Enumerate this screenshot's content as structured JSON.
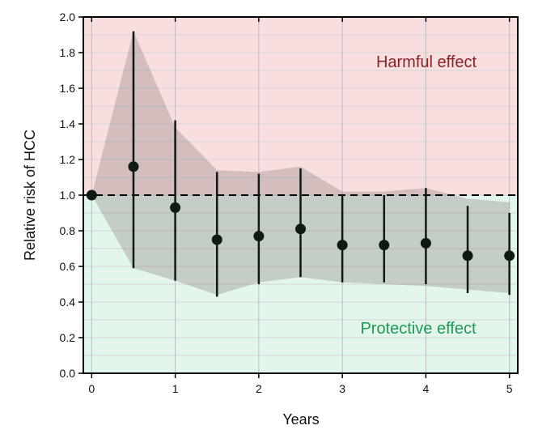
{
  "colors": {
    "harmful_bg": "#f8dede",
    "protective_bg": "#e3f6ec",
    "band": "#7f6f6f",
    "point": "#0e1a12",
    "harmful_text": "#8b2228",
    "protective_text": "#1f9a55",
    "grid_minor": "#d6d6d6",
    "grid_major": "#bdbdbd"
  },
  "chart_data": {
    "type": "scatter",
    "title": "",
    "xlabel": "Years",
    "ylabel": "Relative risk of HCC",
    "xlim": [
      -0.1,
      5.1
    ],
    "ylim": [
      0.0,
      2.0
    ],
    "xticks": [
      0,
      1,
      2,
      3,
      4,
      5
    ],
    "xtick_labels": [
      "0",
      "1",
      "2",
      "3",
      "4",
      "5"
    ],
    "yticks": [
      0.0,
      0.2,
      0.4,
      0.6,
      0.8,
      1.0,
      1.2,
      1.4,
      1.6,
      1.8,
      2.0
    ],
    "ytick_labels": [
      "0.0",
      "0.2",
      "0.4",
      "0.6",
      "0.8",
      "1.0",
      "1.2",
      "1.4",
      "1.6",
      "1.8",
      "2.0"
    ],
    "reference_line": 1.0,
    "grid": true,
    "regions": [
      {
        "name": "harmful",
        "label": "Harmful effect",
        "from": 1.0,
        "to": 2.0
      },
      {
        "name": "protective",
        "label": "Protective effect",
        "from": 0.0,
        "to": 1.0
      }
    ],
    "series": [
      {
        "name": "Relative risk",
        "x": [
          0,
          0.5,
          1,
          1.5,
          2,
          2.5,
          3,
          3.5,
          4,
          4.5,
          5
        ],
        "y": [
          1.0,
          1.16,
          0.93,
          0.75,
          0.77,
          0.81,
          0.72,
          0.72,
          0.73,
          0.66,
          0.66
        ],
        "lower": [
          1.0,
          0.59,
          0.52,
          0.43,
          0.5,
          0.54,
          0.51,
          0.51,
          0.5,
          0.45,
          0.44
        ],
        "upper": [
          1.0,
          1.92,
          1.42,
          1.13,
          1.12,
          1.15,
          1.0,
          1.0,
          1.04,
          0.94,
          0.9
        ]
      }
    ],
    "band": {
      "x": [
        0,
        0.5,
        1,
        1.5,
        2,
        2.5,
        3,
        3.5,
        4,
        4.5,
        5
      ],
      "upper": [
        1.0,
        1.92,
        1.38,
        1.14,
        1.13,
        1.16,
        1.02,
        1.02,
        1.04,
        0.98,
        0.96
      ],
      "lower": [
        1.0,
        0.59,
        0.52,
        0.44,
        0.51,
        0.54,
        0.51,
        0.5,
        0.49,
        0.47,
        0.45
      ]
    }
  }
}
